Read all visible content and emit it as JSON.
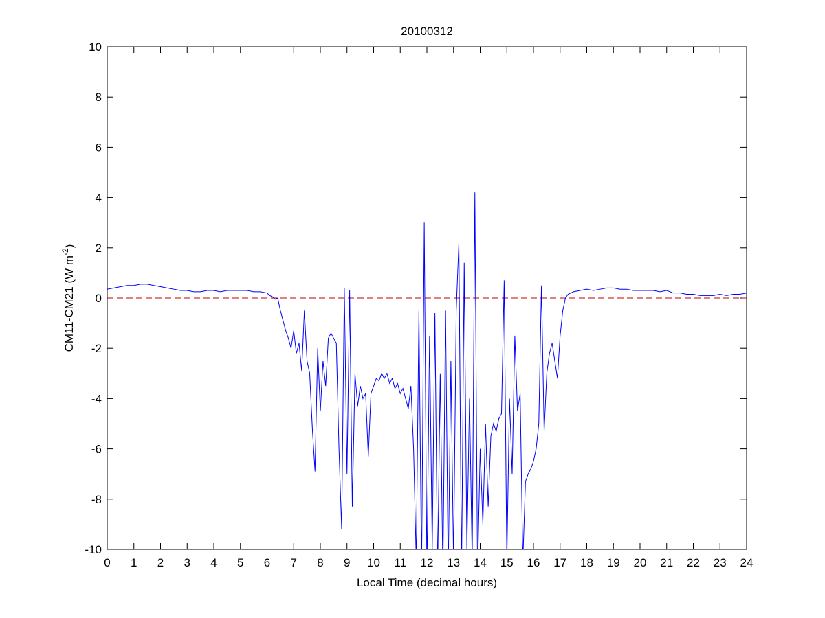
{
  "chart_data": {
    "type": "line",
    "title": "20100312",
    "xlabel": "Local Time (decimal hours)",
    "ylabel": [
      "CM11-CM21 (W m",
      "-2",
      ")"
    ],
    "xlim": [
      0,
      24
    ],
    "ylim": [
      -10,
      10
    ],
    "xticks": [
      0,
      1,
      2,
      3,
      4,
      5,
      6,
      7,
      8,
      9,
      10,
      11,
      12,
      13,
      14,
      15,
      16,
      17,
      18,
      19,
      20,
      21,
      22,
      23,
      24
    ],
    "yticks": [
      -10,
      -8,
      -6,
      -4,
      -2,
      0,
      2,
      4,
      6,
      8,
      10
    ],
    "grid": false,
    "reference_line": {
      "value": 0,
      "color": "#c00000",
      "dash": true
    },
    "x": [
      0,
      0.25,
      0.5,
      0.75,
      1,
      1.25,
      1.5,
      1.75,
      2,
      2.25,
      2.5,
      2.75,
      3,
      3.25,
      3.5,
      3.75,
      4,
      4.25,
      4.5,
      4.75,
      5,
      5.25,
      5.5,
      5.75,
      6,
      6.1,
      6.2,
      6.3,
      6.4,
      6.5,
      6.6,
      6.7,
      6.8,
      6.9,
      7.0,
      7.1,
      7.2,
      7.3,
      7.4,
      7.5,
      7.6,
      7.7,
      7.8,
      7.9,
      8.0,
      8.1,
      8.2,
      8.3,
      8.4,
      8.5,
      8.6,
      8.7,
      8.8,
      8.9,
      9.0,
      9.1,
      9.2,
      9.3,
      9.4,
      9.5,
      9.6,
      9.7,
      9.8,
      9.9,
      10.0,
      10.1,
      10.2,
      10.3,
      10.4,
      10.5,
      10.6,
      10.7,
      10.8,
      10.9,
      11.0,
      11.1,
      11.2,
      11.3,
      11.4,
      11.5,
      11.6,
      11.7,
      11.8,
      11.9,
      12.0,
      12.1,
      12.2,
      12.3,
      12.4,
      12.5,
      12.6,
      12.7,
      12.8,
      12.9,
      13.0,
      13.1,
      13.2,
      13.3,
      13.4,
      13.5,
      13.6,
      13.7,
      13.8,
      13.9,
      14.0,
      14.1,
      14.2,
      14.3,
      14.4,
      14.5,
      14.6,
      14.7,
      14.8,
      14.9,
      15.0,
      15.1,
      15.2,
      15.3,
      15.4,
      15.5,
      15.6,
      15.7,
      15.8,
      15.9,
      16.0,
      16.1,
      16.2,
      16.3,
      16.4,
      16.5,
      16.6,
      16.7,
      16.8,
      16.9,
      17.0,
      17.1,
      17.2,
      17.3,
      17.4,
      17.5,
      17.75,
      18,
      18.25,
      18.5,
      18.75,
      19,
      19.25,
      19.5,
      19.75,
      20,
      20.25,
      20.5,
      20.75,
      21,
      21.25,
      21.5,
      21.75,
      22,
      22.25,
      22.5,
      22.75,
      23,
      23.25,
      23.5,
      23.75,
      24
    ],
    "series": [
      {
        "color": "#0000ff",
        "values": [
          0.35,
          0.4,
          0.45,
          0.5,
          0.5,
          0.55,
          0.55,
          0.5,
          0.45,
          0.4,
          0.35,
          0.3,
          0.3,
          0.25,
          0.25,
          0.3,
          0.3,
          0.25,
          0.3,
          0.3,
          0.3,
          0.3,
          0.25,
          0.25,
          0.2,
          0.1,
          0.05,
          -0.05,
          0,
          -0.5,
          -0.9,
          -1.3,
          -1.6,
          -2.0,
          -1.3,
          -2.2,
          -1.8,
          -2.9,
          -0.5,
          -2.5,
          -3.0,
          -5.2,
          -6.9,
          -2.0,
          -4.5,
          -2.5,
          -3.5,
          -1.6,
          -1.4,
          -1.6,
          -1.8,
          -6.0,
          -9.2,
          0.4,
          -7.0,
          0.3,
          -8.3,
          -3.0,
          -4.3,
          -3.5,
          -4.0,
          -3.8,
          -6.3,
          -3.8,
          -3.5,
          -3.2,
          -3.3,
          -3.0,
          -3.2,
          -3.0,
          -3.4,
          -3.2,
          -3.6,
          -3.4,
          -3.8,
          -3.6,
          -4.0,
          -4.4,
          -3.5,
          -6.0,
          -10.5,
          -0.5,
          -11,
          3.0,
          -11,
          -1.5,
          -10,
          -0.6,
          -11,
          -3,
          -11,
          -0.5,
          -11,
          -2.5,
          -10.5,
          -0.5,
          2.2,
          -11,
          1.4,
          -10,
          -4,
          -10.5,
          4.2,
          -11,
          -6,
          -9,
          -5,
          -8.3,
          -5.5,
          -5.0,
          -5.3,
          -4.8,
          -4.6,
          0.7,
          -10.5,
          -4.0,
          -7.0,
          -1.5,
          -4.5,
          -3.8,
          -10.5,
          -7.3,
          -7.0,
          -6.8,
          -6.5,
          -6.0,
          -5.0,
          0.5,
          -5.3,
          -3.0,
          -2.2,
          -1.8,
          -2.5,
          -3.2,
          -1.5,
          -0.5,
          0,
          0.15,
          0.2,
          0.25,
          0.3,
          0.35,
          0.3,
          0.35,
          0.4,
          0.4,
          0.35,
          0.35,
          0.3,
          0.3,
          0.3,
          0.3,
          0.25,
          0.3,
          0.2,
          0.2,
          0.15,
          0.15,
          0.1,
          0.1,
          0.1,
          0.15,
          0.1,
          0.15,
          0.15,
          0.2
        ]
      }
    ]
  }
}
